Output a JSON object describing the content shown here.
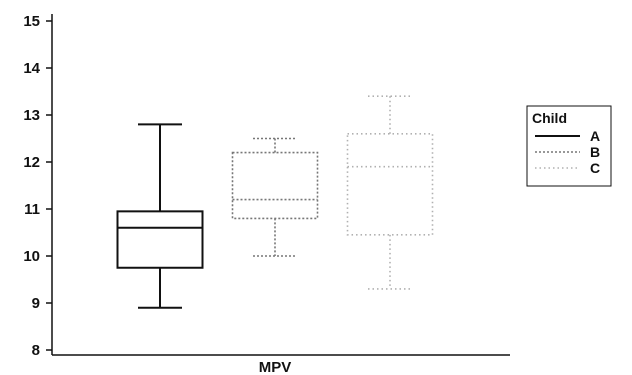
{
  "chart_data": {
    "type": "box",
    "xlabel": "MPV",
    "ylabel": "",
    "ylim": [
      8,
      15
    ],
    "yticks": [
      8,
      9,
      10,
      11,
      12,
      13,
      14,
      15
    ],
    "grid": false,
    "legend": {
      "title": "Child",
      "position": "right",
      "entries": [
        {
          "label": "A",
          "line_style": "solid",
          "color": "#111111"
        },
        {
          "label": "B",
          "line_style": "dotted",
          "color": "#777777"
        },
        {
          "label": "C",
          "line_style": "dotted",
          "color": "#b0b0b0"
        }
      ]
    },
    "series": [
      {
        "name": "A",
        "min": 8.9,
        "q1": 9.75,
        "median": 10.6,
        "q3": 10.95,
        "max": 12.8
      },
      {
        "name": "B",
        "min": 10.0,
        "q1": 10.8,
        "median": 11.2,
        "q3": 12.2,
        "max": 12.5
      },
      {
        "name": "C",
        "min": 9.3,
        "q1": 10.45,
        "median": 11.9,
        "q3": 12.6,
        "max": 13.4
      }
    ]
  }
}
